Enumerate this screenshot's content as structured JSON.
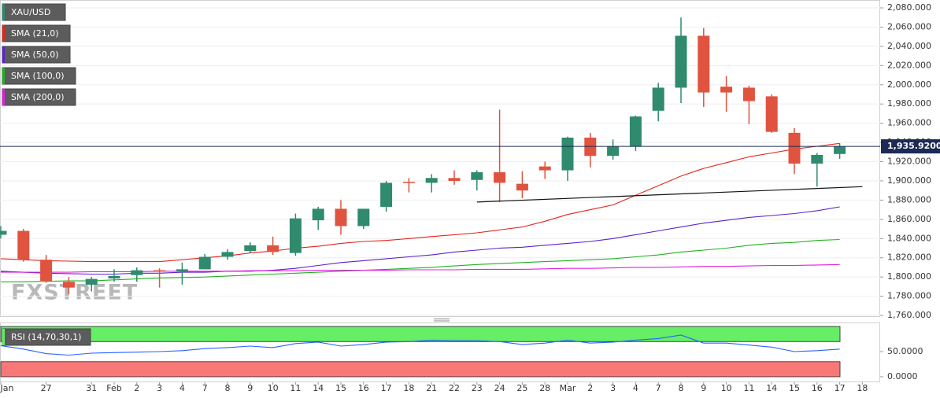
{
  "chart_data": {
    "type": "candlestick",
    "title": "XAU/USD",
    "watermark": "FXSTREET",
    "categories": [
      "Jan",
      null,
      "27",
      null,
      "31",
      "Feb",
      "2",
      "3",
      "4",
      "7",
      "8",
      "9",
      "10",
      "11",
      "14",
      "15",
      "16",
      "17",
      "18",
      "21",
      "22",
      "23",
      "24",
      "25",
      "28",
      "Mar",
      "2",
      "3",
      "4",
      "7",
      "8",
      "9",
      "10",
      "11",
      "14",
      "15",
      "16",
      "17",
      "18"
    ],
    "open": [
      1844,
      1848,
      1818,
      1795,
      1792,
      1798.5,
      1802,
      1807,
      1806,
      1808,
      1821,
      1827,
      1833,
      1825,
      1859,
      1871,
      1853,
      1873,
      1899,
      1898,
      1903,
      1901,
      1909,
      1897,
      1915,
      1911,
      1945,
      1926,
      1936,
      1973,
      1997,
      2051,
      1998,
      1997,
      1988,
      1950,
      1918,
      1928,
      null
    ],
    "high": [
      1853,
      1850,
      1823,
      1800,
      1800,
      1808,
      1810,
      1809,
      1815,
      1824,
      1829,
      1836,
      1842,
      1866,
      1873,
      1880,
      1871,
      1900,
      1903,
      1907,
      1911,
      1911,
      1974,
      1910,
      1920,
      1946,
      1950,
      1943,
      1968,
      2002,
      2070,
      2059,
      2009,
      1999,
      1990,
      1955,
      1929,
      1939,
      null
    ],
    "low": [
      1840,
      1816,
      1794,
      1782,
      1785,
      1795,
      1795,
      1789,
      1792,
      1808,
      1818,
      1825,
      1823,
      1822,
      1849,
      1844,
      1850,
      1868,
      1888,
      1888,
      1896,
      1890,
      1878,
      1882,
      1902,
      1900,
      1914,
      1922,
      1931,
      1962,
      1981,
      1977,
      1972,
      1959,
      1950,
      1907,
      1894,
      1923,
      null
    ],
    "close": [
      1848,
      1818,
      1796,
      1789,
      1798,
      1801,
      1807,
      1806,
      1808,
      1821,
      1826,
      1833,
      1826,
      1861,
      1871,
      1853,
      1871,
      1898,
      1898,
      1903,
      1900,
      1909,
      1898,
      1890,
      1911,
      1945,
      1926,
      1936,
      1967,
      1997,
      2051,
      1992,
      1992,
      1983,
      1951,
      1918,
      1927,
      1936,
      null
    ],
    "up_color": "#2f8a6e",
    "down_color": "#e0533f",
    "series": [
      {
        "name": "SMA (21,0)",
        "color": "#e3241b",
        "values": [
          1819,
          1818,
          1817,
          1816.5,
          1816,
          1816,
          1816,
          1816,
          1818,
          1820,
          1822,
          1825,
          1827,
          1830,
          1832,
          1835,
          1837,
          1838,
          1840,
          1842,
          1844,
          1846,
          1849,
          1852,
          1858,
          1865,
          1870,
          1875,
          1885,
          1895,
          1905,
          1913,
          1919,
          1925,
          1929,
          1933,
          1936,
          1939,
          null
        ]
      },
      {
        "name": "SMA (50,0)",
        "color": "#5b22c8",
        "values": [
          1806,
          1805,
          1804,
          1803.5,
          1803,
          1803,
          1804,
          1804,
          1805,
          1805,
          1806,
          1806,
          1807,
          1809,
          1812,
          1815,
          1817,
          1819,
          1821,
          1823,
          1826,
          1828,
          1830,
          1831,
          1833,
          1835,
          1837,
          1840,
          1844,
          1848,
          1852,
          1856,
          1859,
          1862,
          1864,
          1866,
          1869,
          1873,
          null
        ]
      },
      {
        "name": "SMA (100,0)",
        "color": "#22b022",
        "values": [
          1795,
          1795,
          1795.5,
          1796,
          1796,
          1797,
          1798,
          1799,
          1799.5,
          1800,
          1801,
          1802,
          1803,
          1804,
          1805,
          1806,
          1807,
          1808,
          1809,
          1810,
          1811.5,
          1813,
          1814,
          1815,
          1816,
          1817,
          1818,
          1819,
          1821,
          1823,
          1826,
          1828,
          1830,
          1833,
          1835,
          1836,
          1838,
          1839,
          null
        ]
      },
      {
        "name": "SMA (200,0)",
        "color": "#e020e0",
        "values": [
          1805,
          1805,
          1805,
          1805,
          1805.5,
          1805.5,
          1805.5,
          1806,
          1806,
          1806,
          1806,
          1806.5,
          1806.5,
          1806.5,
          1807,
          1807,
          1807,
          1807,
          1807.5,
          1807.5,
          1807.5,
          1808,
          1808,
          1808,
          1808.5,
          1809,
          1809,
          1809.5,
          1810,
          1810,
          1810.5,
          1811,
          1811,
          1811.5,
          1812,
          1812,
          1812.5,
          1813,
          null
        ]
      }
    ],
    "last": {
      "value": 1935.92,
      "label": "1,935.9200"
    },
    "last_color": "#1c2a56",
    "trendline": {
      "x": [
        21,
        38
      ],
      "y": [
        1878,
        1894
      ]
    },
    "ylim": [
      1758.4,
      2088.2
    ],
    "yticks": [
      {
        "value": 1760,
        "label": "1,760.000"
      },
      {
        "value": 1780,
        "label": "1,780.000"
      },
      {
        "value": 1800,
        "label": "1,800.000"
      },
      {
        "value": 1820,
        "label": "1,820.000"
      },
      {
        "value": 1840,
        "label": "1,840.000"
      },
      {
        "value": 1860,
        "label": "1,860.000"
      },
      {
        "value": 1880,
        "label": "1,880.000"
      },
      {
        "value": 1900,
        "label": "1,900.000"
      },
      {
        "value": 1920,
        "label": "1,920.000"
      },
      {
        "value": 1940,
        "label": "1,940.000"
      },
      {
        "value": 1960,
        "label": "1,960.000"
      },
      {
        "value": 1980,
        "label": "1,980.000"
      },
      {
        "value": 2000,
        "label": "2,000.000"
      },
      {
        "value": 2020,
        "label": "2,020.000"
      },
      {
        "value": 2040,
        "label": "2,040.000"
      },
      {
        "value": 2060,
        "label": "2,060.000"
      },
      {
        "value": 2080,
        "label": "2,080.000"
      }
    ],
    "grid": true,
    "rsi": {
      "name": "RSI (14,70,30,1)",
      "color": "#2962ff",
      "values": [
        62,
        55,
        46,
        43,
        47,
        48,
        49,
        50,
        52,
        56,
        58,
        61,
        58,
        66,
        69,
        61,
        64,
        69,
        70,
        73,
        72,
        72,
        70,
        64,
        67,
        73,
        67,
        69,
        73,
        76,
        83,
        67,
        67,
        63,
        59,
        50,
        52,
        55,
        null
      ],
      "ylim": [
        -11,
        108
      ],
      "yticks": [
        {
          "value": 0,
          "label": "0.0000"
        },
        {
          "value": 50,
          "label": "50.0000"
        }
      ],
      "upper_band": [
        70,
        100
      ],
      "lower_band": [
        0,
        30
      ],
      "upper_color": "#66ee66",
      "lower_color": "#f87878"
    }
  }
}
